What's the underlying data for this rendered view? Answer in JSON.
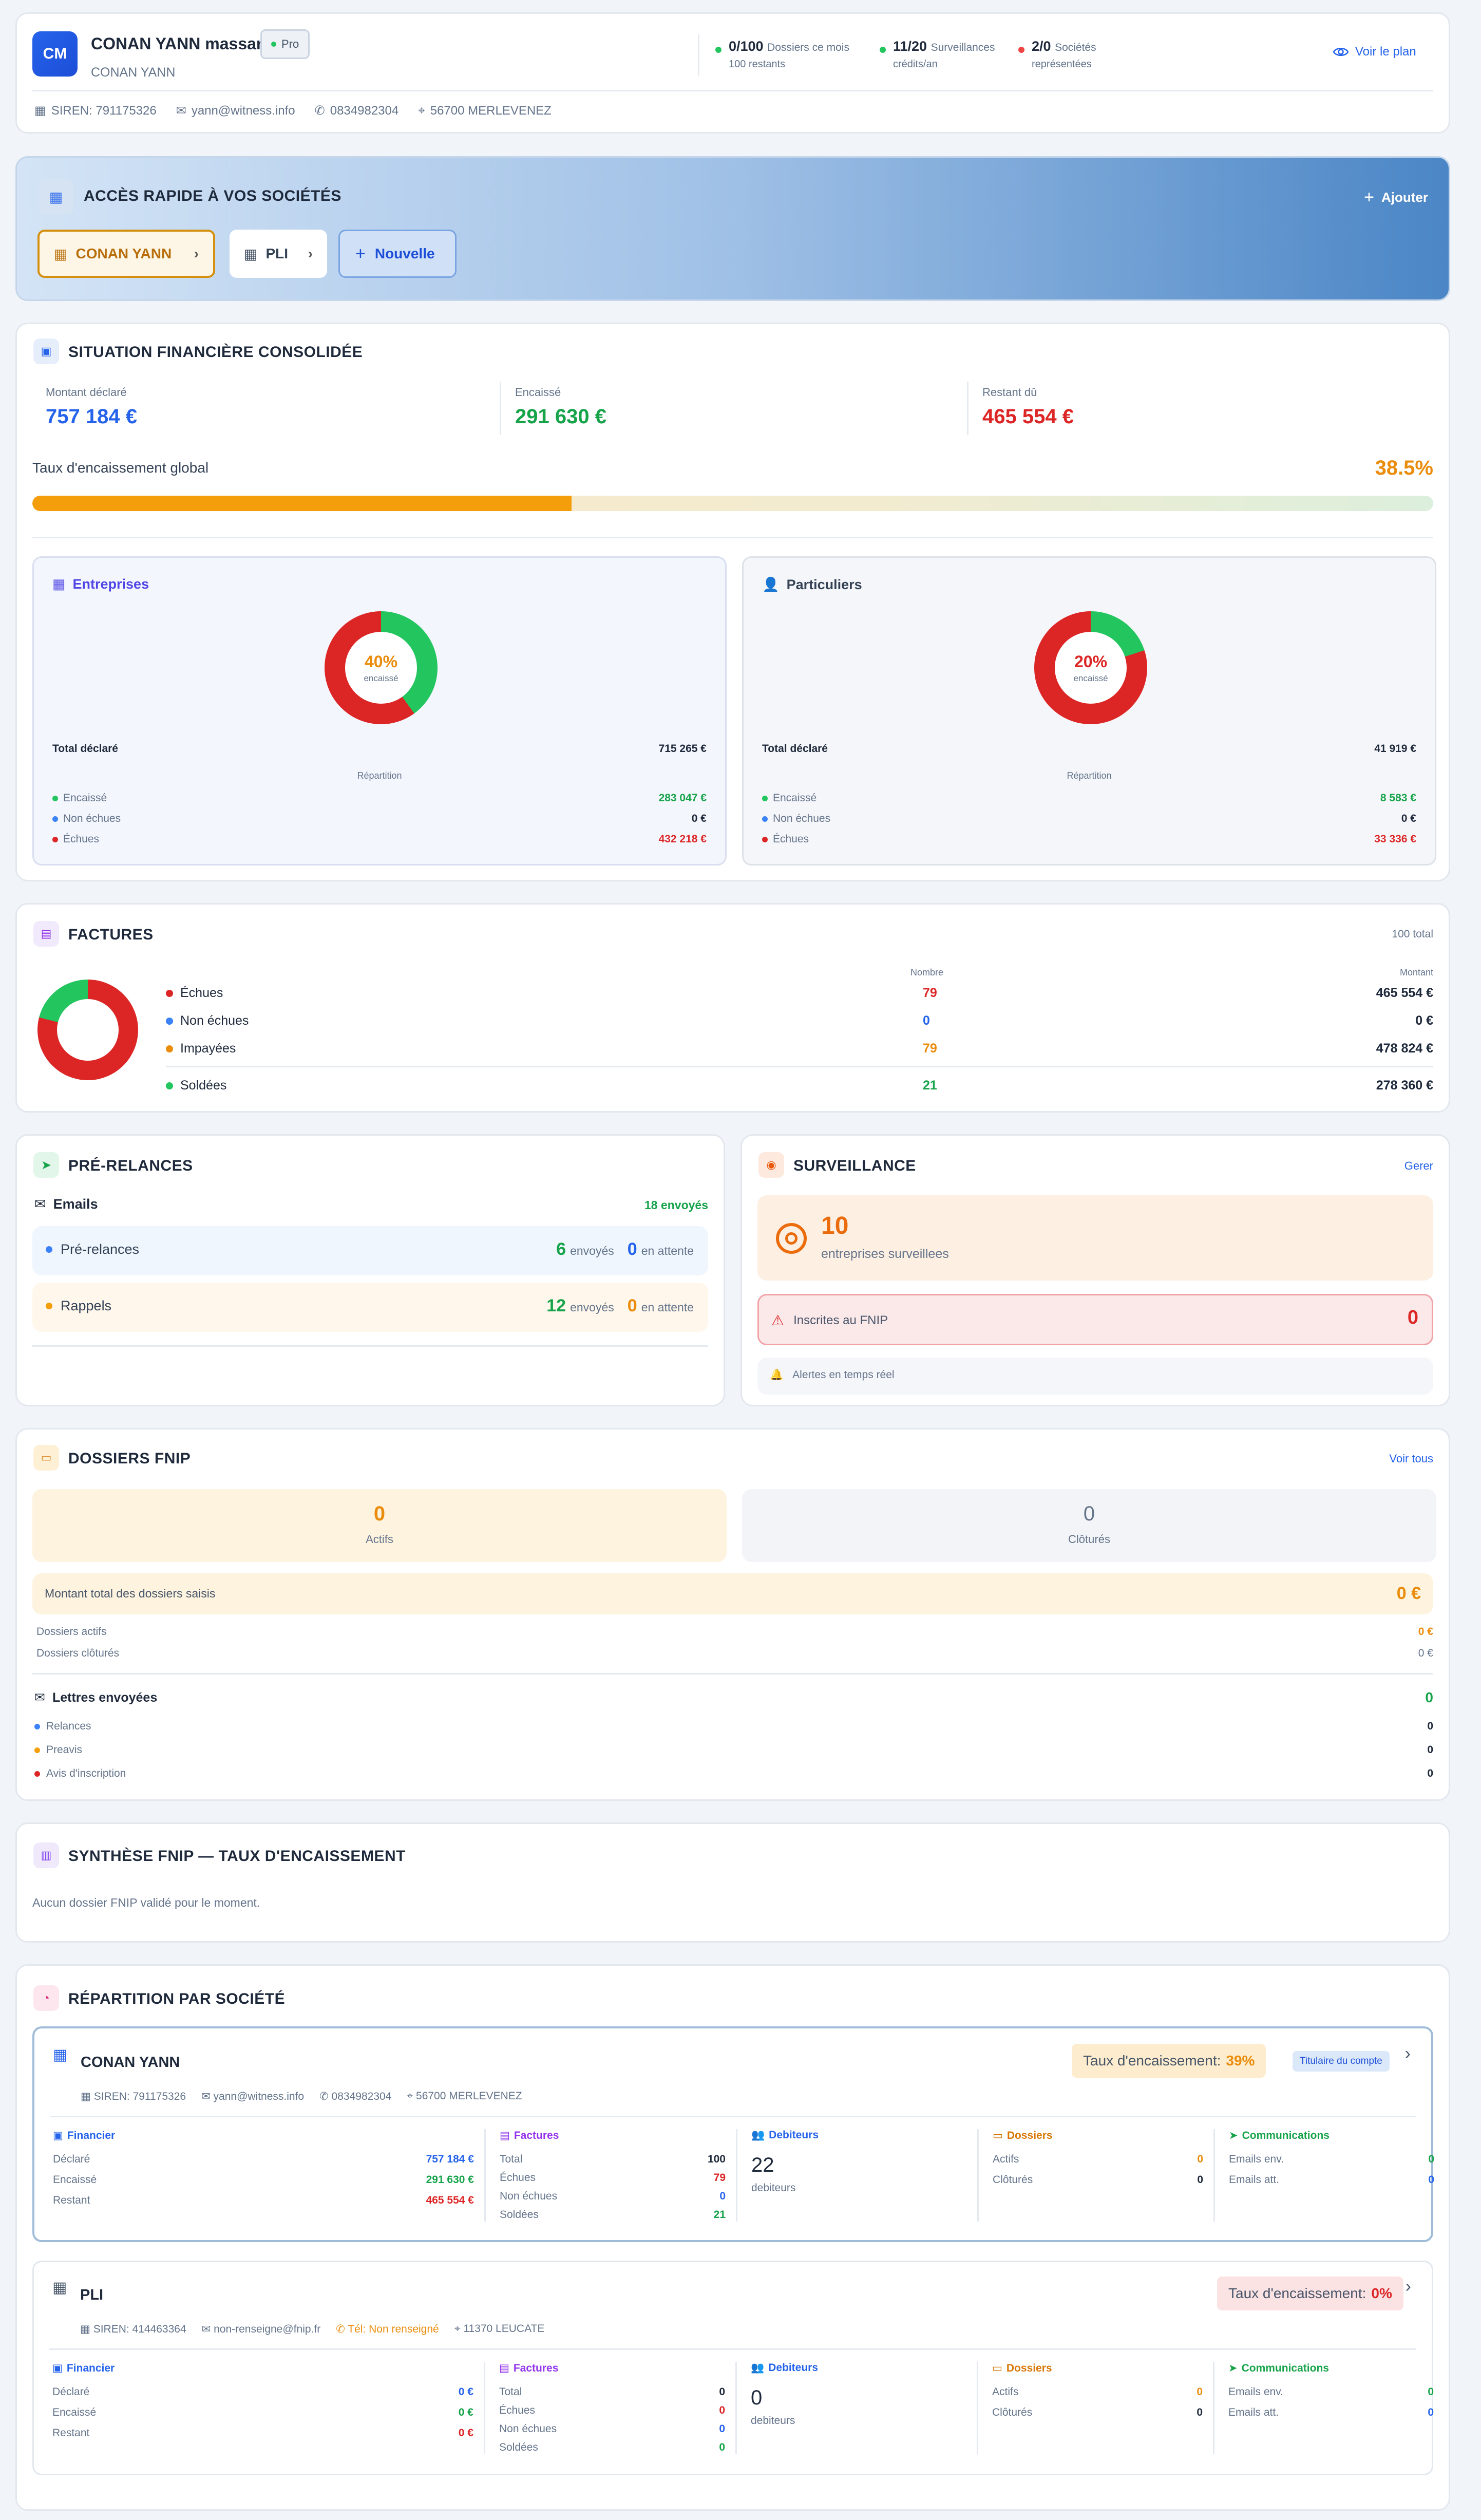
{
  "header": {
    "avatar": "CM",
    "name": "CONAN  YANN massard",
    "badge": "Pro",
    "subname": "CONAN  YANN",
    "stats": [
      {
        "main": "0/100",
        "label": "Dossiers ce mois",
        "sub": "100 restants",
        "color": "#22c55e"
      },
      {
        "main": "11/20",
        "label": "Surveillances",
        "sub": "crédits/an",
        "color": "#22c55e"
      },
      {
        "main": "2/0",
        "label": "Sociétés",
        "sub": "représentées",
        "color": "#ef4444"
      }
    ],
    "plan_link": "Voir le plan",
    "siren": "SIREN: 791175326",
    "email": "yann@witness.info",
    "phone": "0834982304",
    "address": "56700 MERLEVENEZ"
  },
  "quick": {
    "title": "ACCÈS RAPIDE À VOS SOCIÉTÉS",
    "add": "Ajouter",
    "companies": [
      "CONAN  YANN",
      "PLI"
    ],
    "new": "Nouvelle"
  },
  "finance": {
    "title": "SITUATION FINANCIÈRE CONSOLIDÉE",
    "declared_label": "Montant déclaré",
    "declared": "757 184 €",
    "collected_label": "Encaissé",
    "collected": "291 630 €",
    "remaining_label": "Restant dû",
    "remaining": "465 554 €",
    "rate_label": "Taux d'encaissement global",
    "rate": "38.5%",
    "rate_value": 38.5,
    "panels": [
      {
        "title": "Entreprises",
        "pct": "40%",
        "pct_value": 40,
        "pct_label": "encaissé",
        "pct_color": "#ea8c0c",
        "total_label": "Total déclaré",
        "total": "715 265 €",
        "rep": "Répartition",
        "rows": [
          {
            "label": "Encaissé",
            "value": "283 047 €",
            "color": "#22c55e",
            "vcolor": "#16a34a"
          },
          {
            "label": "Non échues",
            "value": "0 €",
            "color": "#3b82f6",
            "vcolor": "#1e293b"
          },
          {
            "label": "Échues",
            "value": "432 218 €",
            "color": "#dc2626",
            "vcolor": "#dc2626"
          }
        ]
      },
      {
        "title": "Particuliers",
        "pct": "20%",
        "pct_value": 20,
        "pct_label": "encaissé",
        "pct_color": "#dc2626",
        "total_label": "Total déclaré",
        "total": "41 919 €",
        "rep": "Répartition",
        "rows": [
          {
            "label": "Encaissé",
            "value": "8 583 €",
            "color": "#22c55e",
            "vcolor": "#16a34a"
          },
          {
            "label": "Non échues",
            "value": "0 €",
            "color": "#3b82f6",
            "vcolor": "#1e293b"
          },
          {
            "label": "Échues",
            "value": "33 336 €",
            "color": "#dc2626",
            "vcolor": "#dc2626"
          }
        ]
      }
    ]
  },
  "invoices": {
    "title": "FACTURES",
    "total": "100 total",
    "col_count": "Nombre",
    "col_amount": "Montant",
    "rows": [
      {
        "label": "Échues",
        "count": "79",
        "amount": "465 554 €",
        "color": "#dc2626"
      },
      {
        "label": "Non échues",
        "count": "0",
        "amount": "0 €",
        "color": "#3b82f6"
      },
      {
        "label": "Impayées",
        "count": "79",
        "amount": "478 824 €",
        "color": "#ea8c0c"
      },
      {
        "label": "Soldées",
        "count": "21",
        "amount": "278 360 €",
        "color": "#22c55e"
      }
    ],
    "donut": {
      "echues": 79,
      "soldees": 21
    }
  },
  "prerelances": {
    "title": "PRÉ-RELANCES",
    "emails_label": "Emails",
    "emails_sent": "18 envoyés",
    "rows": [
      {
        "label": "Pré-relances",
        "sent": "6",
        "sent_label": "envoyés",
        "wait": "0",
        "wait_label": "en attente",
        "bg": "#eff6fd",
        "dot": "#3b82f6"
      },
      {
        "label": "Rappels",
        "sent": "12",
        "sent_label": "envoyés",
        "wait": "0",
        "wait_label": "en attente",
        "bg": "#fff7ec",
        "dot": "#f59e0b"
      }
    ]
  },
  "surveillance": {
    "title": "SURVEILLANCE",
    "manage": "Gerer",
    "count": "10",
    "count_label": "entreprises surveillees",
    "fnip_label": "Inscrites au FNIP",
    "fnip_count": "0",
    "alerts": "Alertes en temps réel"
  },
  "dossiers": {
    "title": "DOSSIERS FNIP",
    "see_all": "Voir tous",
    "active": "0",
    "active_label": "Actifs",
    "closed": "0",
    "closed_label": "Clôturés",
    "total_label": "Montant total des dossiers saisis",
    "total": "0 €",
    "active_amount_label": "Dossiers actifs",
    "active_amount": "0 €",
    "closed_amount_label": "Dossiers clôturés",
    "closed_amount": "0 €",
    "letters_label": "Lettres envoyées",
    "letters": "0",
    "letter_rows": [
      {
        "label": "Relances",
        "value": "0",
        "color": "#3b82f6"
      },
      {
        "label": "Preavis",
        "value": "0",
        "color": "#f59e0b"
      },
      {
        "label": "Avis d'inscription",
        "value": "0",
        "color": "#dc2626"
      }
    ]
  },
  "synthese": {
    "title": "SYNTHÈSE FNIP — TAUX D'ENCAISSEMENT",
    "empty": "Aucun dossier FNIP validé pour le moment."
  },
  "repartition": {
    "title": "RÉPARTITION PAR SOCIÉTÉ",
    "companies": [
      {
        "name": "CONAN  YANN",
        "rate_label": "Taux d'encaissement:",
        "rate": "39%",
        "owner": "Titulaire du compte",
        "siren": "SIREN: 791175326",
        "email": "yann@witness.info",
        "phone": "0834982304",
        "address": "56700 MERLEVENEZ",
        "fin": {
          "title": "Financier",
          "declared_label": "Déclaré",
          "declared": "757 184 €",
          "collected_label": "Encaissé",
          "collected": "291 630 €",
          "remaining_label": "Restant",
          "remaining": "465 554 €"
        },
        "fac": {
          "title": "Factures",
          "total_label": "Total",
          "total": "100",
          "echues_label": "Échues",
          "echues": "79",
          "nonechues_label": "Non échues",
          "nonechues": "0",
          "soldees_label": "Soldées",
          "soldees": "21"
        },
        "deb": {
          "title": "Debiteurs",
          "count": "22",
          "label": "debiteurs"
        },
        "dos": {
          "title": "Dossiers",
          "actifs_label": "Actifs",
          "actifs": "0",
          "clotures_label": "Clôturés",
          "clotures": "0"
        },
        "com": {
          "title": "Communications",
          "env_label": "Emails env.",
          "env": "0",
          "att_label": "Emails att.",
          "att": "0"
        }
      },
      {
        "name": "PLI",
        "rate_label": "Taux d'encaissement:",
        "rate": "0%",
        "owner": "",
        "siren": "SIREN: 414463364",
        "email": "non-renseigne@fnip.fr",
        "phone": "Tél: Non renseigné",
        "address": "11370 LEUCATE",
        "fin": {
          "title": "Financier",
          "declared_label": "Déclaré",
          "declared": "0 €",
          "collected_label": "Encaissé",
          "collected": "0 €",
          "remaining_label": "Restant",
          "remaining": "0 €"
        },
        "fac": {
          "title": "Factures",
          "total_label": "Total",
          "total": "0",
          "echues_label": "Échues",
          "echues": "0",
          "nonechues_label": "Non échues",
          "nonechues": "0",
          "soldees_label": "Soldées",
          "soldees": "0"
        },
        "deb": {
          "title": "Debiteurs",
          "count": "0",
          "label": "debiteurs"
        },
        "dos": {
          "title": "Dossiers",
          "actifs_label": "Actifs",
          "actifs": "0",
          "clotures_label": "Clôturés",
          "clotures": "0"
        },
        "com": {
          "title": "Communications",
          "env_label": "Emails env.",
          "env": "0",
          "att_label": "Emails att.",
          "att": "0"
        }
      }
    ]
  }
}
